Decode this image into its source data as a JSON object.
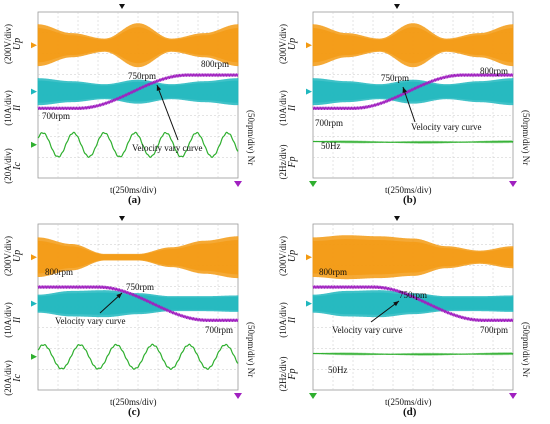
{
  "chart_data": [
    {
      "type": "line",
      "panel": "(a)",
      "xlabel": "t(250ms/div)",
      "right_axis_label": "(50rpm/div) Nr",
      "traces": [
        {
          "symbol": "Up",
          "scale": "(200V/div)",
          "color": "#F39A12",
          "kind": "envelope",
          "envelope_nodes": [
            0.95,
            0.55,
            0.3,
            1.0,
            0.3,
            0.55,
            0.95
          ]
        },
        {
          "symbol": "Il",
          "scale": "(10A/div)",
          "color": "#1FB7BE",
          "kind": "envelope",
          "envelope_nodes": [
            0.9,
            0.7,
            0.5,
            0.8,
            0.5,
            0.7,
            0.9
          ]
        },
        {
          "symbol": "Ic",
          "scale": "(20A/div)",
          "color": "#2FAF2F",
          "kind": "sine",
          "cycles": 6.5
        },
        {
          "symbol": "Nr",
          "color": "#A020C0",
          "kind": "speed",
          "from_rpm": 700,
          "to_rpm": 800,
          "direction": "up"
        }
      ],
      "annotations": [
        "800rpm",
        "750rpm",
        "700rpm",
        "Velocity vary curve"
      ]
    },
    {
      "type": "line",
      "panel": "(b)",
      "xlabel": "t(250ms/div)",
      "right_axis_label": "(50rpm/div) Nr",
      "traces": [
        {
          "symbol": "Up",
          "scale": "(200V/div)",
          "color": "#F39A12",
          "kind": "envelope",
          "envelope_nodes": [
            0.95,
            0.55,
            0.3,
            1.0,
            0.3,
            0.55,
            0.95
          ]
        },
        {
          "symbol": "Il",
          "scale": "(10A/div)",
          "color": "#1FB7BE",
          "kind": "envelope",
          "envelope_nodes": [
            0.9,
            0.7,
            0.5,
            0.8,
            0.5,
            0.7,
            0.9
          ]
        },
        {
          "symbol": "Fp",
          "scale": "(2Hz/div)",
          "color": "#2FAF2F",
          "kind": "flat",
          "value_label": "50Hz"
        },
        {
          "symbol": "Nr",
          "color": "#A020C0",
          "kind": "speed",
          "from_rpm": 700,
          "to_rpm": 800,
          "direction": "up"
        }
      ],
      "annotations": [
        "800rpm",
        "750rpm",
        "700rpm",
        "Velocity vary curve",
        "50Hz"
      ]
    },
    {
      "type": "line",
      "panel": "(c)",
      "xlabel": "t(250ms/div)",
      "right_axis_label": "(50rpm/div) Nr",
      "traces": [
        {
          "symbol": "Up",
          "scale": "(200V/div)",
          "color": "#F39A12",
          "kind": "envelope",
          "envelope_nodes": [
            0.9,
            0.6,
            0.15,
            0.15,
            0.45,
            0.75,
            0.95
          ]
        },
        {
          "symbol": "Il",
          "scale": "(10A/div)",
          "color": "#1FB7BE",
          "kind": "envelope",
          "envelope_nodes": [
            0.6,
            0.85,
            0.9,
            0.7,
            0.5,
            0.5,
            0.55
          ]
        },
        {
          "symbol": "Ic",
          "scale": "(20A/div)",
          "color": "#2FAF2F",
          "kind": "sine",
          "cycles": 5.5
        },
        {
          "symbol": "Nr",
          "color": "#A020C0",
          "kind": "speed",
          "from_rpm": 800,
          "to_rpm": 700,
          "direction": "down"
        }
      ],
      "annotations": [
        "800rpm",
        "750rpm",
        "700rpm",
        "Velocity vary curve"
      ]
    },
    {
      "type": "line",
      "panel": "(d)",
      "xlabel": "t(250ms/div)",
      "right_axis_label": "(50rpm/div) Nr",
      "traces": [
        {
          "symbol": "Up",
          "scale": "(200V/div)",
          "color": "#F39A12",
          "kind": "envelope",
          "envelope_nodes": [
            0.9,
            1.0,
            0.95,
            0.85,
            0.5,
            0.3,
            0.5
          ]
        },
        {
          "symbol": "Il",
          "scale": "(10A/div)",
          "color": "#1FB7BE",
          "kind": "envelope",
          "envelope_nodes": [
            0.6,
            0.85,
            0.9,
            0.7,
            0.5,
            0.5,
            0.55
          ]
        },
        {
          "symbol": "Fp",
          "scale": "(2Hz/div)",
          "color": "#2FAF2F",
          "kind": "flat",
          "value_label": "50Hz"
        },
        {
          "symbol": "Nr",
          "color": "#A020C0",
          "kind": "speed",
          "from_rpm": 800,
          "to_rpm": 700,
          "direction": "down"
        }
      ],
      "annotations": [
        "800rpm",
        "750rpm",
        "700rpm",
        "Velocity vary curve",
        "50Hz"
      ]
    }
  ]
}
